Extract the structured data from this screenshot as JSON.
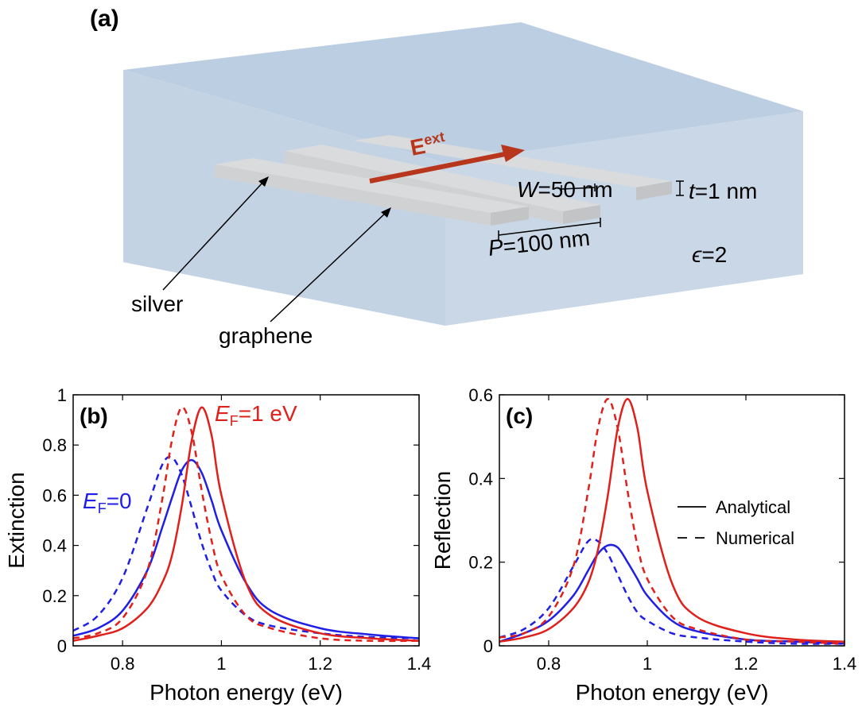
{
  "diagram": {
    "label": "(a)",
    "field": {
      "symbol": "E",
      "superscript": "ext"
    },
    "width": {
      "symbol": "W",
      "text": "=50 nm"
    },
    "thickness": {
      "symbol": "t",
      "text": "=1 nm"
    },
    "period": {
      "symbol": "P",
      "text": "=100 nm"
    },
    "permittivity": {
      "symbol": "ϵ",
      "text": "=2"
    },
    "silver": "silver",
    "graphene": "graphene"
  },
  "chart_data": [
    {
      "type": "line",
      "label": "(b)",
      "xlabel": "Photon energy (eV)",
      "ylabel": "Extinction",
      "xlim": [
        0.7,
        1.4
      ],
      "xticks": [
        0.8,
        1,
        1.2,
        1.4
      ],
      "ylim": [
        0,
        1
      ],
      "yticks": [
        0,
        0.2,
        0.4,
        0.6,
        0.8,
        1
      ],
      "x": [
        0.7,
        0.75,
        0.8,
        0.85,
        0.88,
        0.9,
        0.92,
        0.94,
        0.96,
        0.98,
        1.0,
        1.05,
        1.1,
        1.2,
        1.3,
        1.4
      ],
      "series": [
        {
          "color": "#1f1fe6",
          "style": "solid",
          "values": [
            0.04,
            0.07,
            0.14,
            0.3,
            0.47,
            0.59,
            0.7,
            0.74,
            0.69,
            0.58,
            0.46,
            0.25,
            0.14,
            0.07,
            0.045,
            0.03
          ]
        },
        {
          "color": "#1f1fe6",
          "style": "dashed",
          "values": [
            0.06,
            0.12,
            0.27,
            0.55,
            0.72,
            0.75,
            0.68,
            0.55,
            0.41,
            0.3,
            0.22,
            0.12,
            0.08,
            0.05,
            0.035,
            0.03
          ]
        },
        {
          "color": "#e0201b",
          "style": "solid",
          "values": [
            0.02,
            0.04,
            0.07,
            0.15,
            0.25,
            0.36,
            0.56,
            0.82,
            0.95,
            0.84,
            0.6,
            0.25,
            0.12,
            0.05,
            0.03,
            0.02
          ]
        },
        {
          "color": "#e0201b",
          "style": "dashed",
          "values": [
            0.03,
            0.05,
            0.11,
            0.3,
            0.58,
            0.82,
            0.95,
            0.85,
            0.62,
            0.42,
            0.28,
            0.12,
            0.07,
            0.03,
            0.02,
            0.02
          ]
        }
      ],
      "annotations": [
        {
          "parts": [
            "E",
            "F",
            "=1 eV"
          ],
          "color": "#e0201b"
        },
        {
          "parts": [
            "E",
            "F",
            "=0"
          ],
          "color": "#1f1fe6"
        }
      ]
    },
    {
      "type": "line",
      "label": "(c)",
      "xlabel": "Photon energy (eV)",
      "ylabel": "Reflection",
      "xlim": [
        0.7,
        1.4
      ],
      "xticks": [
        0.8,
        1,
        1.2,
        1.4
      ],
      "ylim": [
        0,
        0.6
      ],
      "yticks": [
        0,
        0.2,
        0.4,
        0.6
      ],
      "x": [
        0.7,
        0.75,
        0.8,
        0.85,
        0.88,
        0.9,
        0.92,
        0.94,
        0.96,
        0.98,
        1.0,
        1.05,
        1.1,
        1.2,
        1.3,
        1.4
      ],
      "series": [
        {
          "color": "#1f1fe6",
          "style": "solid",
          "values": [
            0.01,
            0.03,
            0.06,
            0.12,
            0.18,
            0.22,
            0.24,
            0.235,
            0.2,
            0.16,
            0.12,
            0.06,
            0.035,
            0.015,
            0.01,
            0.005
          ]
        },
        {
          "color": "#1f1fe6",
          "style": "dashed",
          "values": [
            0.02,
            0.04,
            0.09,
            0.19,
            0.25,
            0.25,
            0.22,
            0.17,
            0.12,
            0.08,
            0.06,
            0.03,
            0.02,
            0.01,
            0.005,
            0.005
          ]
        },
        {
          "color": "#e0201b",
          "style": "solid",
          "values": [
            0.01,
            0.02,
            0.04,
            0.09,
            0.15,
            0.23,
            0.36,
            0.52,
            0.59,
            0.52,
            0.37,
            0.15,
            0.07,
            0.03,
            0.015,
            0.01
          ]
        },
        {
          "color": "#e0201b",
          "style": "dashed",
          "values": [
            0.02,
            0.03,
            0.07,
            0.19,
            0.37,
            0.52,
            0.59,
            0.52,
            0.37,
            0.24,
            0.16,
            0.07,
            0.04,
            0.015,
            0.01,
            0.005
          ]
        }
      ],
      "legend_position": "right",
      "legend": [
        {
          "label": "Analytical",
          "style": "solid",
          "color": "#000000"
        },
        {
          "label": "Numerical",
          "style": "dashed",
          "color": "#000000"
        }
      ]
    }
  ]
}
